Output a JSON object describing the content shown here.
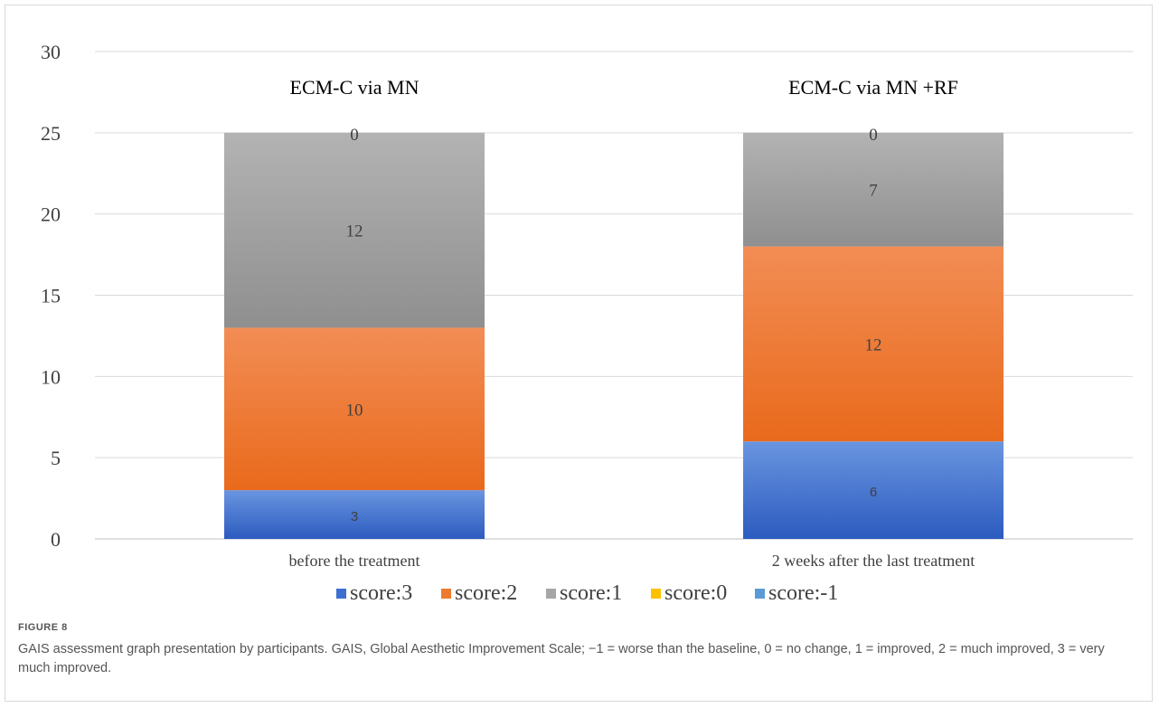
{
  "chart_data": {
    "type": "bar",
    "stacked": true,
    "categories": [
      "before the treatment",
      "2 weeks after the last treatment"
    ],
    "group_titles": [
      "ECM-C via MN",
      "ECM-C via MN +RF"
    ],
    "series": [
      {
        "name": "score:3",
        "values": [
          3,
          6
        ],
        "color": "#3d6fd1"
      },
      {
        "name": "score:2",
        "values": [
          10,
          12
        ],
        "color": "#ee7a30"
      },
      {
        "name": "score:1",
        "values": [
          12,
          7
        ],
        "color": "#a6a6a6"
      },
      {
        "name": "score:0",
        "values": [
          0,
          0
        ],
        "color": "#ffc000"
      },
      {
        "name": "score:-1",
        "values": [
          0,
          0
        ],
        "color": "#5b9bd5"
      }
    ],
    "top_labels": [
      "0",
      "0"
    ],
    "yticks": [
      0,
      5,
      10,
      15,
      20,
      25,
      30
    ],
    "ylim": [
      0,
      30
    ],
    "grid": true,
    "legend_position": "bottom"
  },
  "figure": {
    "label": "FIGURE 8",
    "caption": "GAIS assessment graph presentation by participants. GAIS, Global Aesthetic Improvement Scale; −1 = worse than the baseline, 0 = no change, 1 = improved, 2 = much improved, 3 = very much improved."
  }
}
